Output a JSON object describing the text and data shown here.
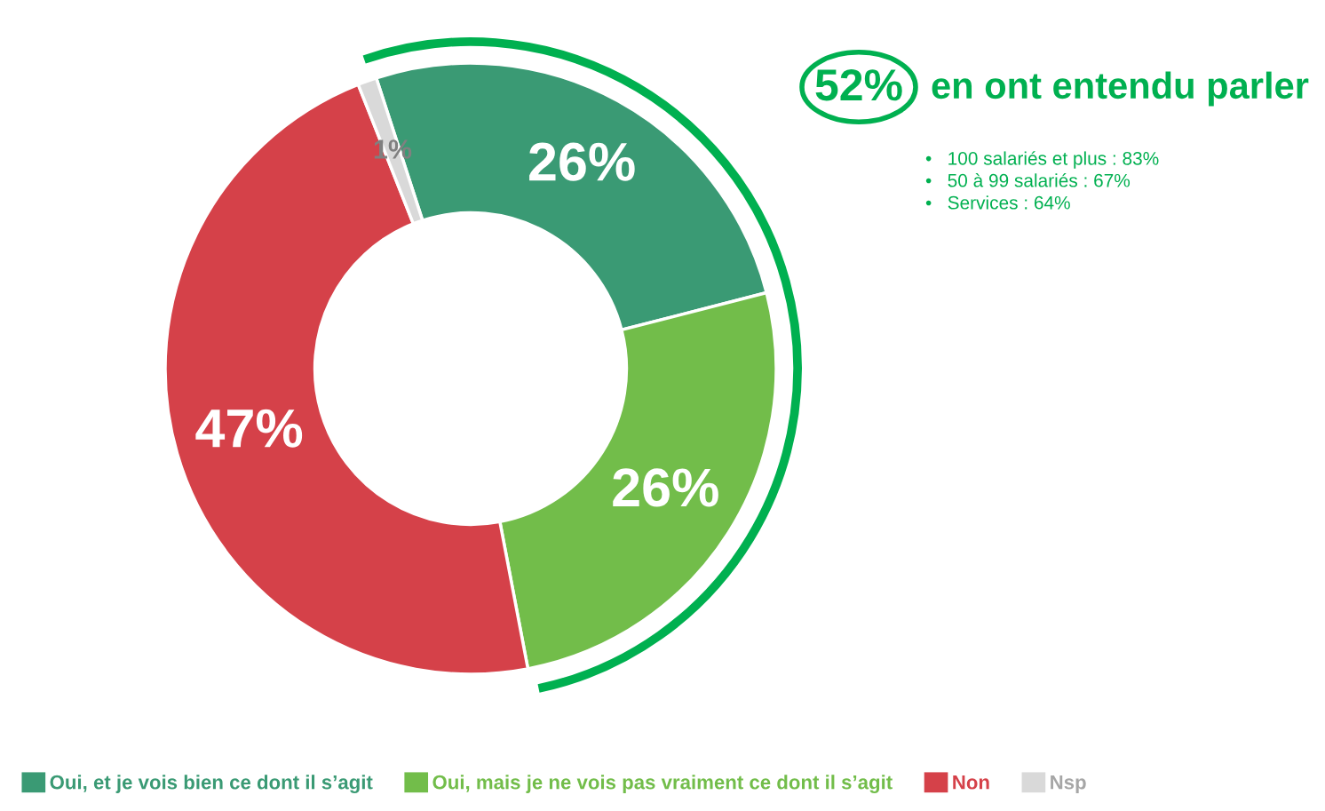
{
  "chart_data": {
    "type": "donut",
    "categories": [
      "Oui, et je vois bien ce dont il s’agit",
      "Oui, mais je ne vois pas vraiment ce dont il s’agit",
      "Non",
      "Nsp"
    ],
    "values": [
      26,
      26,
      47,
      1
    ],
    "colors": [
      "#3a9a74",
      "#72bd4a",
      "#d54149",
      "#d9d9d9"
    ],
    "value_labels": [
      "26%",
      "26%",
      "47%",
      "1%"
    ],
    "legend": "bottom",
    "annotations": [
      "52%",
      "en ont entendu parler",
      "•   100 salariés et plus : 83%",
      "•   50 à 99 salariés : 67%",
      "•   Services : 64%"
    ]
  }
}
